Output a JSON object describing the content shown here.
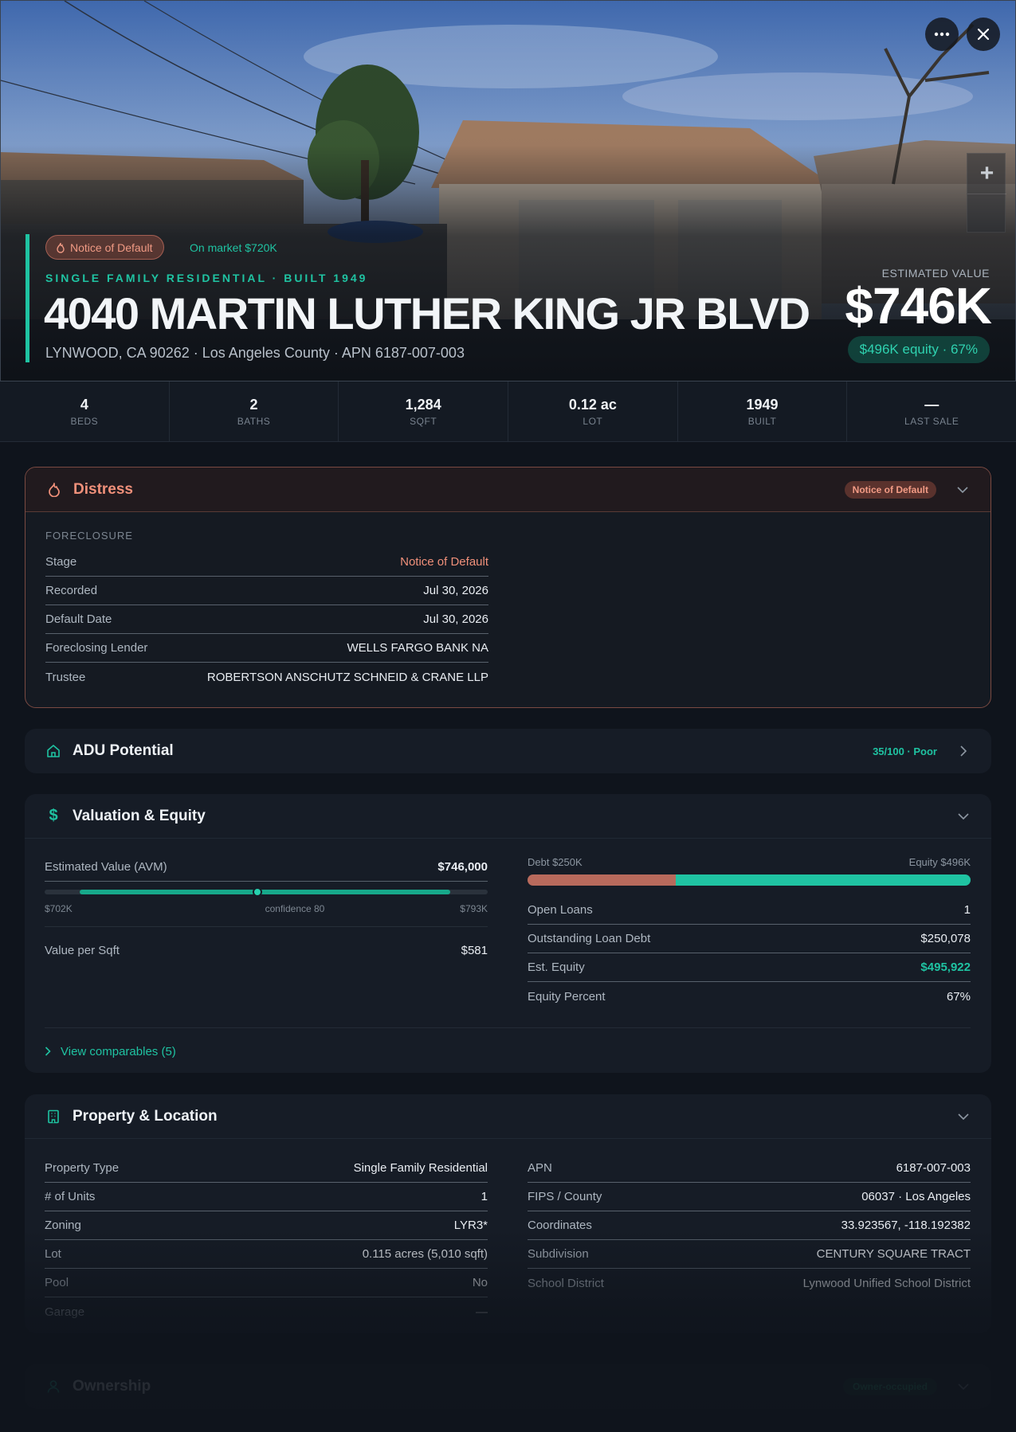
{
  "hero": {
    "distress_badge": "Notice of Default",
    "on_market": "On market $720K",
    "eyebrow": "SINGLE FAMILY RESIDENTIAL · BUILT 1949",
    "address": "4040 MARTIN LUTHER KING JR BLVD",
    "subaddress": "LYNWOOD, CA 90262 · Los Angeles County · APN 6187-007-003",
    "est_label": "ESTIMATED VALUE",
    "est_value": "$746K",
    "equity_pill": "$496K equity · 67%",
    "zoom_in": "+"
  },
  "stats": [
    {
      "value": "4",
      "label": "BEDS"
    },
    {
      "value": "2",
      "label": "BATHS"
    },
    {
      "value": "1,284",
      "label": "SQFT"
    },
    {
      "value": "0.12 ac",
      "label": "LOT"
    },
    {
      "value": "1949",
      "label": "BUILT"
    },
    {
      "value": "—",
      "label": "LAST SALE"
    }
  ],
  "distress": {
    "title": "Distress",
    "badge": "Notice of Default",
    "section": "FORECLOSURE",
    "rows": [
      {
        "k": "Stage",
        "v": "Notice of Default"
      },
      {
        "k": "Recorded",
        "v": "Jul 30, 2026"
      },
      {
        "k": "Default Date",
        "v": "Jul 30, 2026"
      },
      {
        "k": "Foreclosing Lender",
        "v": "WELLS FARGO BANK NA"
      },
      {
        "k": "Trustee",
        "v": "ROBERTSON ANSCHUTZ SCHNEID & CRANE LLP"
      }
    ]
  },
  "adu": {
    "title": "ADU Potential",
    "score": "35/100 · Poor"
  },
  "valuation": {
    "title": "Valuation & Equity",
    "avm_label": "Estimated Value (AVM)",
    "avm_value": "$746,000",
    "range_low": "$702K",
    "range_high": "$793K",
    "confidence": "confidence 80",
    "avm_position_fraction": 0.48,
    "range_fill_fraction": [
      0.08,
      0.915
    ],
    "vps_label": "Value per Sqft",
    "vps_value": "$581",
    "debt_label": "Debt $250K",
    "equity_label": "Equity $496K",
    "debt_fraction": 0.335,
    "rows": [
      {
        "k": "Open Loans",
        "v": "1"
      },
      {
        "k": "Outstanding Loan Debt",
        "v": "$250,078"
      },
      {
        "k": "Est. Equity",
        "v": "$495,922"
      },
      {
        "k": "Equity Percent",
        "v": "67%"
      }
    ],
    "comparables": "View comparables (5)"
  },
  "property": {
    "title": "Property & Location",
    "left": [
      {
        "k": "Property Type",
        "v": "Single Family Residential"
      },
      {
        "k": "# of Units",
        "v": "1"
      },
      {
        "k": "Zoning",
        "v": "LYR3*"
      },
      {
        "k": "Lot",
        "v": "0.115 acres (5,010 sqft)"
      },
      {
        "k": "Pool",
        "v": "No"
      },
      {
        "k": "Garage",
        "v": "—"
      }
    ],
    "right": [
      {
        "k": "APN",
        "v": "6187-007-003"
      },
      {
        "k": "FIPS / County",
        "v": "06037 · Los Angeles"
      },
      {
        "k": "Coordinates",
        "v": "33.923567, -118.192382"
      },
      {
        "k": "Subdivision",
        "v": "CENTURY SQUARE TRACT"
      },
      {
        "k": "School District",
        "v": "Lynwood Unified School District"
      }
    ]
  },
  "ownership": {
    "title": "Ownership",
    "badge": "Owner-occupied"
  },
  "colors": {
    "accent": "#1fc3a2",
    "distress": "#f0907a",
    "debt": "#b86a5c",
    "background": "#0f141c"
  }
}
